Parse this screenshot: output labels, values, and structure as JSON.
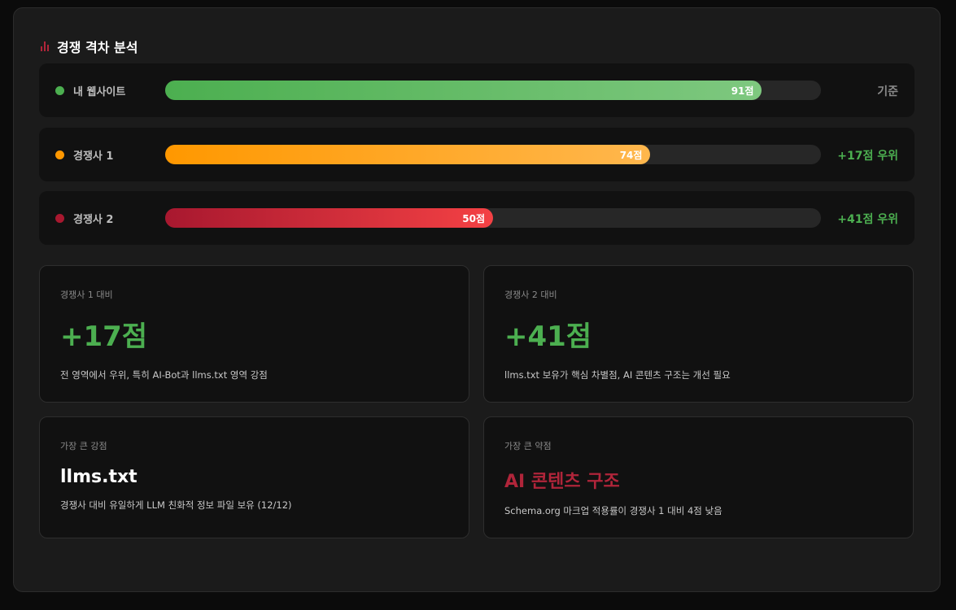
{
  "title": "경쟁 격차 분석",
  "icon": "bar-chart-icon",
  "rows": [
    {
      "label": "내 웹사이트",
      "score": 91,
      "score_label": "91점",
      "status": "기준",
      "color": "#4caf50",
      "status_color": "#8a8a8a"
    },
    {
      "label": "경쟁사 1",
      "score": 74,
      "score_label": "74점",
      "status": "+17점 우위",
      "color": "#ff9800",
      "status_color": "#4caf50"
    },
    {
      "label": "경쟁사 2",
      "score": 50,
      "score_label": "50점",
      "status": "+41점 우위",
      "color": "#a8182f",
      "status_color": "#4caf50"
    }
  ],
  "max_score": 100,
  "cards": [
    {
      "label": "경쟁사 1 대비",
      "value": "+17점",
      "desc": "전 영역에서 우위, 특히 AI-Bot과 llms.txt 영역 강점",
      "color": "#4caf50"
    },
    {
      "label": "경쟁사 2 대비",
      "value": "+41점",
      "desc": "llms.txt 보유가 핵심 차별점, AI 콘텐츠 구조는 개선 필요",
      "color": "#4caf50"
    },
    {
      "label": "가장 큰 강점",
      "value": "llms.txt",
      "desc": "경쟁사 대비 유일하게 LLM 친화적 정보 파일 보유 (12/12)",
      "color": "#ffffff"
    },
    {
      "label": "가장 큰 약점",
      "value": "AI 콘텐츠 구조",
      "desc": "Schema.org 마크업 적용률이 경쟁사 1 대비 4점 낮음",
      "color": "#b0253a"
    }
  ]
}
